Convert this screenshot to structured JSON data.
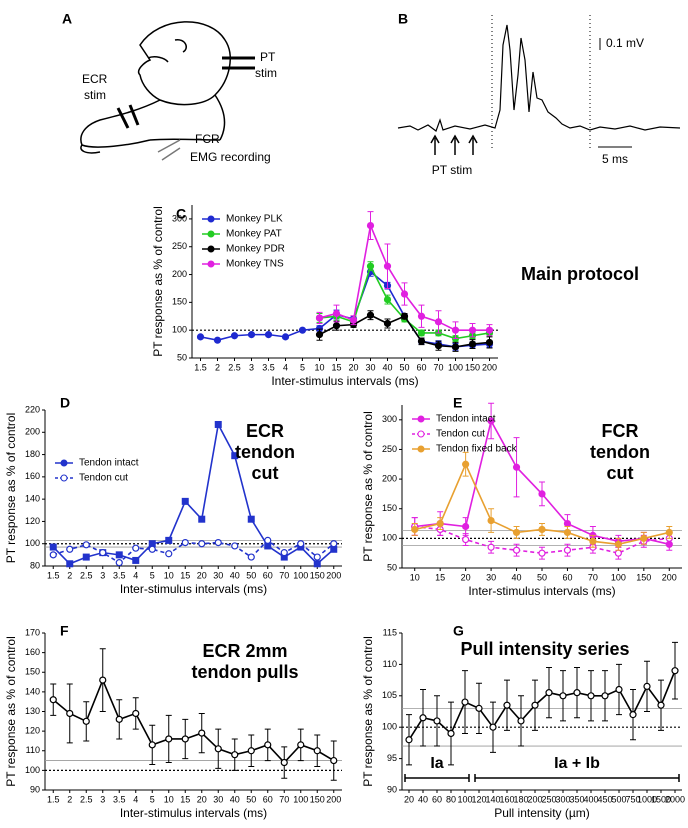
{
  "panel_a": {
    "label": "A",
    "pt_stim": [
      "PT",
      "stim"
    ],
    "ecr_stim": [
      "ECR",
      "stim"
    ],
    "fcr_emg": [
      "FCR",
      "EMG recording"
    ]
  },
  "panel_b": {
    "label": "B",
    "scale_voltage": "0.1 mV",
    "scale_time": "5 ms",
    "pt_stim": "PT stim"
  },
  "chart_data": [
    {
      "type": "line",
      "panel_label": "C",
      "title_lines": [
        "Main protocol"
      ],
      "y_label": "PT response as % of control",
      "x_label": "Inter-stimulus intervals (ms)",
      "categories": [
        "1.5",
        "2",
        "2.5",
        "3",
        "3.5",
        "4",
        "5",
        "10",
        "15",
        "20",
        "30",
        "40",
        "50",
        "60",
        "70",
        "100",
        "150",
        "200"
      ],
      "ylim": [
        50,
        325
      ],
      "yticks": [
        50,
        100,
        150,
        200,
        250,
        300
      ],
      "hlines": [
        {
          "value": 100,
          "style": "dotted"
        }
      ],
      "legend": "upper left",
      "series": [
        {
          "name": "Monkey PLK",
          "color": "#1f2ad0",
          "marker": "circle",
          "marker_fill": "filled",
          "dash": false,
          "values": [
            88,
            82,
            90,
            92,
            92,
            88,
            100,
            103,
            128,
            120,
            205,
            180,
            125,
            80,
            75,
            70,
            73,
            75
          ],
          "errors": [
            null,
            null,
            null,
            null,
            null,
            null,
            null,
            5,
            8,
            5,
            8,
            6,
            5,
            5,
            6,
            6,
            6,
            6
          ]
        },
        {
          "name": "Monkey PAT",
          "color": "#22cc22",
          "marker": "circle",
          "marker_fill": "filled",
          "dash": false,
          "values": [
            null,
            null,
            null,
            null,
            null,
            null,
            null,
            122,
            125,
            115,
            215,
            155,
            120,
            95,
            95,
            85,
            90,
            95
          ],
          "errors": [
            null,
            null,
            null,
            null,
            null,
            null,
            null,
            8,
            8,
            5,
            8,
            8,
            5,
            5,
            5,
            5,
            5,
            5
          ]
        },
        {
          "name": "Monkey PDR",
          "color": "#000000",
          "marker": "circle",
          "marker_fill": "filled",
          "dash": false,
          "values": [
            null,
            null,
            null,
            null,
            null,
            null,
            null,
            92,
            108,
            110,
            127,
            112,
            125,
            80,
            72,
            70,
            75,
            78
          ],
          "errors": [
            null,
            null,
            null,
            null,
            null,
            null,
            null,
            10,
            8,
            5,
            8,
            8,
            5,
            6,
            8,
            8,
            8,
            10
          ]
        },
        {
          "name": "Monkey TNS",
          "color": "#e020e0",
          "marker": "circle",
          "marker_fill": "filled",
          "dash": false,
          "values": [
            null,
            null,
            null,
            null,
            null,
            null,
            null,
            122,
            130,
            118,
            288,
            215,
            165,
            125,
            115,
            100,
            100,
            100
          ],
          "errors": [
            null,
            null,
            null,
            null,
            null,
            null,
            null,
            10,
            15,
            8,
            25,
            40,
            20,
            20,
            20,
            15,
            12,
            10
          ]
        }
      ]
    },
    {
      "type": "line",
      "panel_label": "D",
      "title_lines": [
        "ECR",
        "tendon",
        "cut"
      ],
      "y_label": "PT response as % of control",
      "x_label": "Inter-stimulus intervals (ms)",
      "categories": [
        "1.5",
        "2",
        "2.5",
        "3",
        "3.5",
        "4",
        "5",
        "10",
        "15",
        "20",
        "30",
        "40",
        "50",
        "60",
        "70",
        "100",
        "150",
        "200"
      ],
      "ylim": [
        80,
        220
      ],
      "yticks": [
        80,
        100,
        120,
        140,
        160,
        180,
        200,
        220
      ],
      "hlines": [
        {
          "value": 100,
          "style": "dotted"
        },
        {
          "value": 97,
          "style": "solid"
        },
        {
          "value": 103,
          "style": "solid"
        }
      ],
      "legend": "center left",
      "series": [
        {
          "name": "Tendon intact",
          "color": "#2233cc",
          "marker": "square",
          "marker_fill": "filled",
          "dash": false,
          "values": [
            97,
            82,
            88,
            92,
            90,
            85,
            100,
            103,
            138,
            122,
            207,
            179,
            122,
            98,
            88,
            97,
            82,
            95
          ]
        },
        {
          "name": "Tendon cut",
          "color": "#2233cc",
          "marker": "circle",
          "marker_fill": "open",
          "dash": true,
          "values": [
            90,
            95,
            99,
            92,
            83,
            96,
            95,
            91,
            101,
            100,
            101,
            98,
            88,
            103,
            92,
            100,
            88,
            100
          ]
        }
      ]
    },
    {
      "type": "line",
      "panel_label": "E",
      "title_lines": [
        "FCR",
        "tendon",
        "cut"
      ],
      "y_label": "PT response as % of control",
      "x_label": "Inter-stimulus intervals (ms)",
      "categories": [
        "10",
        "15",
        "20",
        "30",
        "40",
        "50",
        "60",
        "70",
        "100",
        "150",
        "200"
      ],
      "ylim": [
        50,
        325
      ],
      "yticks": [
        50,
        100,
        150,
        200,
        250,
        300
      ],
      "hlines": [
        {
          "value": 100,
          "style": "dotted"
        },
        {
          "value": 88,
          "style": "solid"
        },
        {
          "value": 113,
          "style": "solid"
        }
      ],
      "legend": "upper left",
      "series": [
        {
          "name": "Tendon intact",
          "color": "#e020e0",
          "marker": "circle",
          "marker_fill": "filled",
          "dash": false,
          "values": [
            120,
            125,
            120,
            298,
            220,
            175,
            125,
            105,
            95,
            100,
            90
          ],
          "errors": [
            15,
            20,
            15,
            30,
            50,
            20,
            15,
            15,
            10,
            10,
            10
          ]
        },
        {
          "name": "Tendon cut",
          "color": "#e020e0",
          "marker": "circle",
          "marker_fill": "open",
          "dash": true,
          "values": [
            120,
            115,
            98,
            85,
            80,
            75,
            80,
            85,
            75,
            95,
            100
          ],
          "errors": [
            15,
            10,
            10,
            10,
            10,
            10,
            10,
            10,
            10,
            10,
            10
          ]
        },
        {
          "name": "Tendon fixed back",
          "color": "#e8a030",
          "marker": "circle",
          "marker_fill": "filled",
          "dash": false,
          "values": [
            115,
            125,
            225,
            130,
            110,
            115,
            110,
            95,
            90,
            100,
            110
          ],
          "errors": [
            10,
            10,
            20,
            20,
            10,
            10,
            10,
            10,
            10,
            10,
            10
          ]
        }
      ]
    },
    {
      "type": "line",
      "panel_label": "F",
      "title_lines": [
        "ECR 2mm",
        "tendon pulls"
      ],
      "y_label": "PT response as % of control",
      "x_label": "Inter-stimulus intervals (ms)",
      "categories": [
        "1.5",
        "2",
        "2.5",
        "3",
        "3.5",
        "4",
        "5",
        "10",
        "15",
        "20",
        "30",
        "40",
        "50",
        "60",
        "70",
        "100",
        "150",
        "200"
      ],
      "ylim": [
        90,
        170
      ],
      "yticks": [
        90,
        100,
        110,
        120,
        130,
        140,
        150,
        160,
        170
      ],
      "hlines": [
        {
          "value": 100,
          "style": "dotted"
        },
        {
          "value": 105,
          "style": "solid"
        }
      ],
      "series": [
        {
          "color": "#000000",
          "marker": "circle",
          "marker_fill": "open",
          "dash": false,
          "values": [
            136,
            129,
            125,
            146,
            126,
            129,
            113,
            116,
            116,
            119,
            111,
            108,
            110,
            113,
            104,
            113,
            110,
            105
          ],
          "errors": [
            8,
            15,
            10,
            16,
            10,
            8,
            10,
            12,
            10,
            10,
            10,
            8,
            8,
            8,
            8,
            8,
            8,
            10
          ]
        }
      ]
    },
    {
      "type": "line",
      "panel_label": "G",
      "title_lines": [
        "Pull intensity series"
      ],
      "y_label": "PT response as % of control",
      "x_label": "Pull intensity (µm)",
      "categories": [
        "20",
        "40",
        "60",
        "80",
        "100",
        "120",
        "140",
        "160",
        "180",
        "200",
        "250",
        "300",
        "350",
        "400",
        "450",
        "500",
        "750",
        "1000",
        "1500",
        "2000"
      ],
      "ylim": [
        90,
        115
      ],
      "yticks": [
        90,
        95,
        100,
        105,
        110,
        115
      ],
      "hlines": [
        {
          "value": 100,
          "style": "dotted"
        },
        {
          "value": 97,
          "style": "solid"
        },
        {
          "value": 103,
          "style": "solid"
        }
      ],
      "annotations": [
        "Ia",
        "Ia + Ib"
      ],
      "series": [
        {
          "color": "#000000",
          "marker": "circle",
          "marker_fill": "open",
          "dash": false,
          "values": [
            98,
            101.5,
            101,
            99,
            104,
            103,
            100,
            103.5,
            101,
            103.5,
            105.5,
            105,
            105.5,
            105,
            105,
            106,
            102,
            106.5,
            103.5,
            109
          ],
          "errors": [
            4,
            4.5,
            4,
            5,
            5,
            4,
            4,
            4,
            4,
            4,
            4,
            4,
            4,
            4,
            4,
            4,
            4,
            4,
            4,
            4.5
          ]
        }
      ]
    }
  ]
}
